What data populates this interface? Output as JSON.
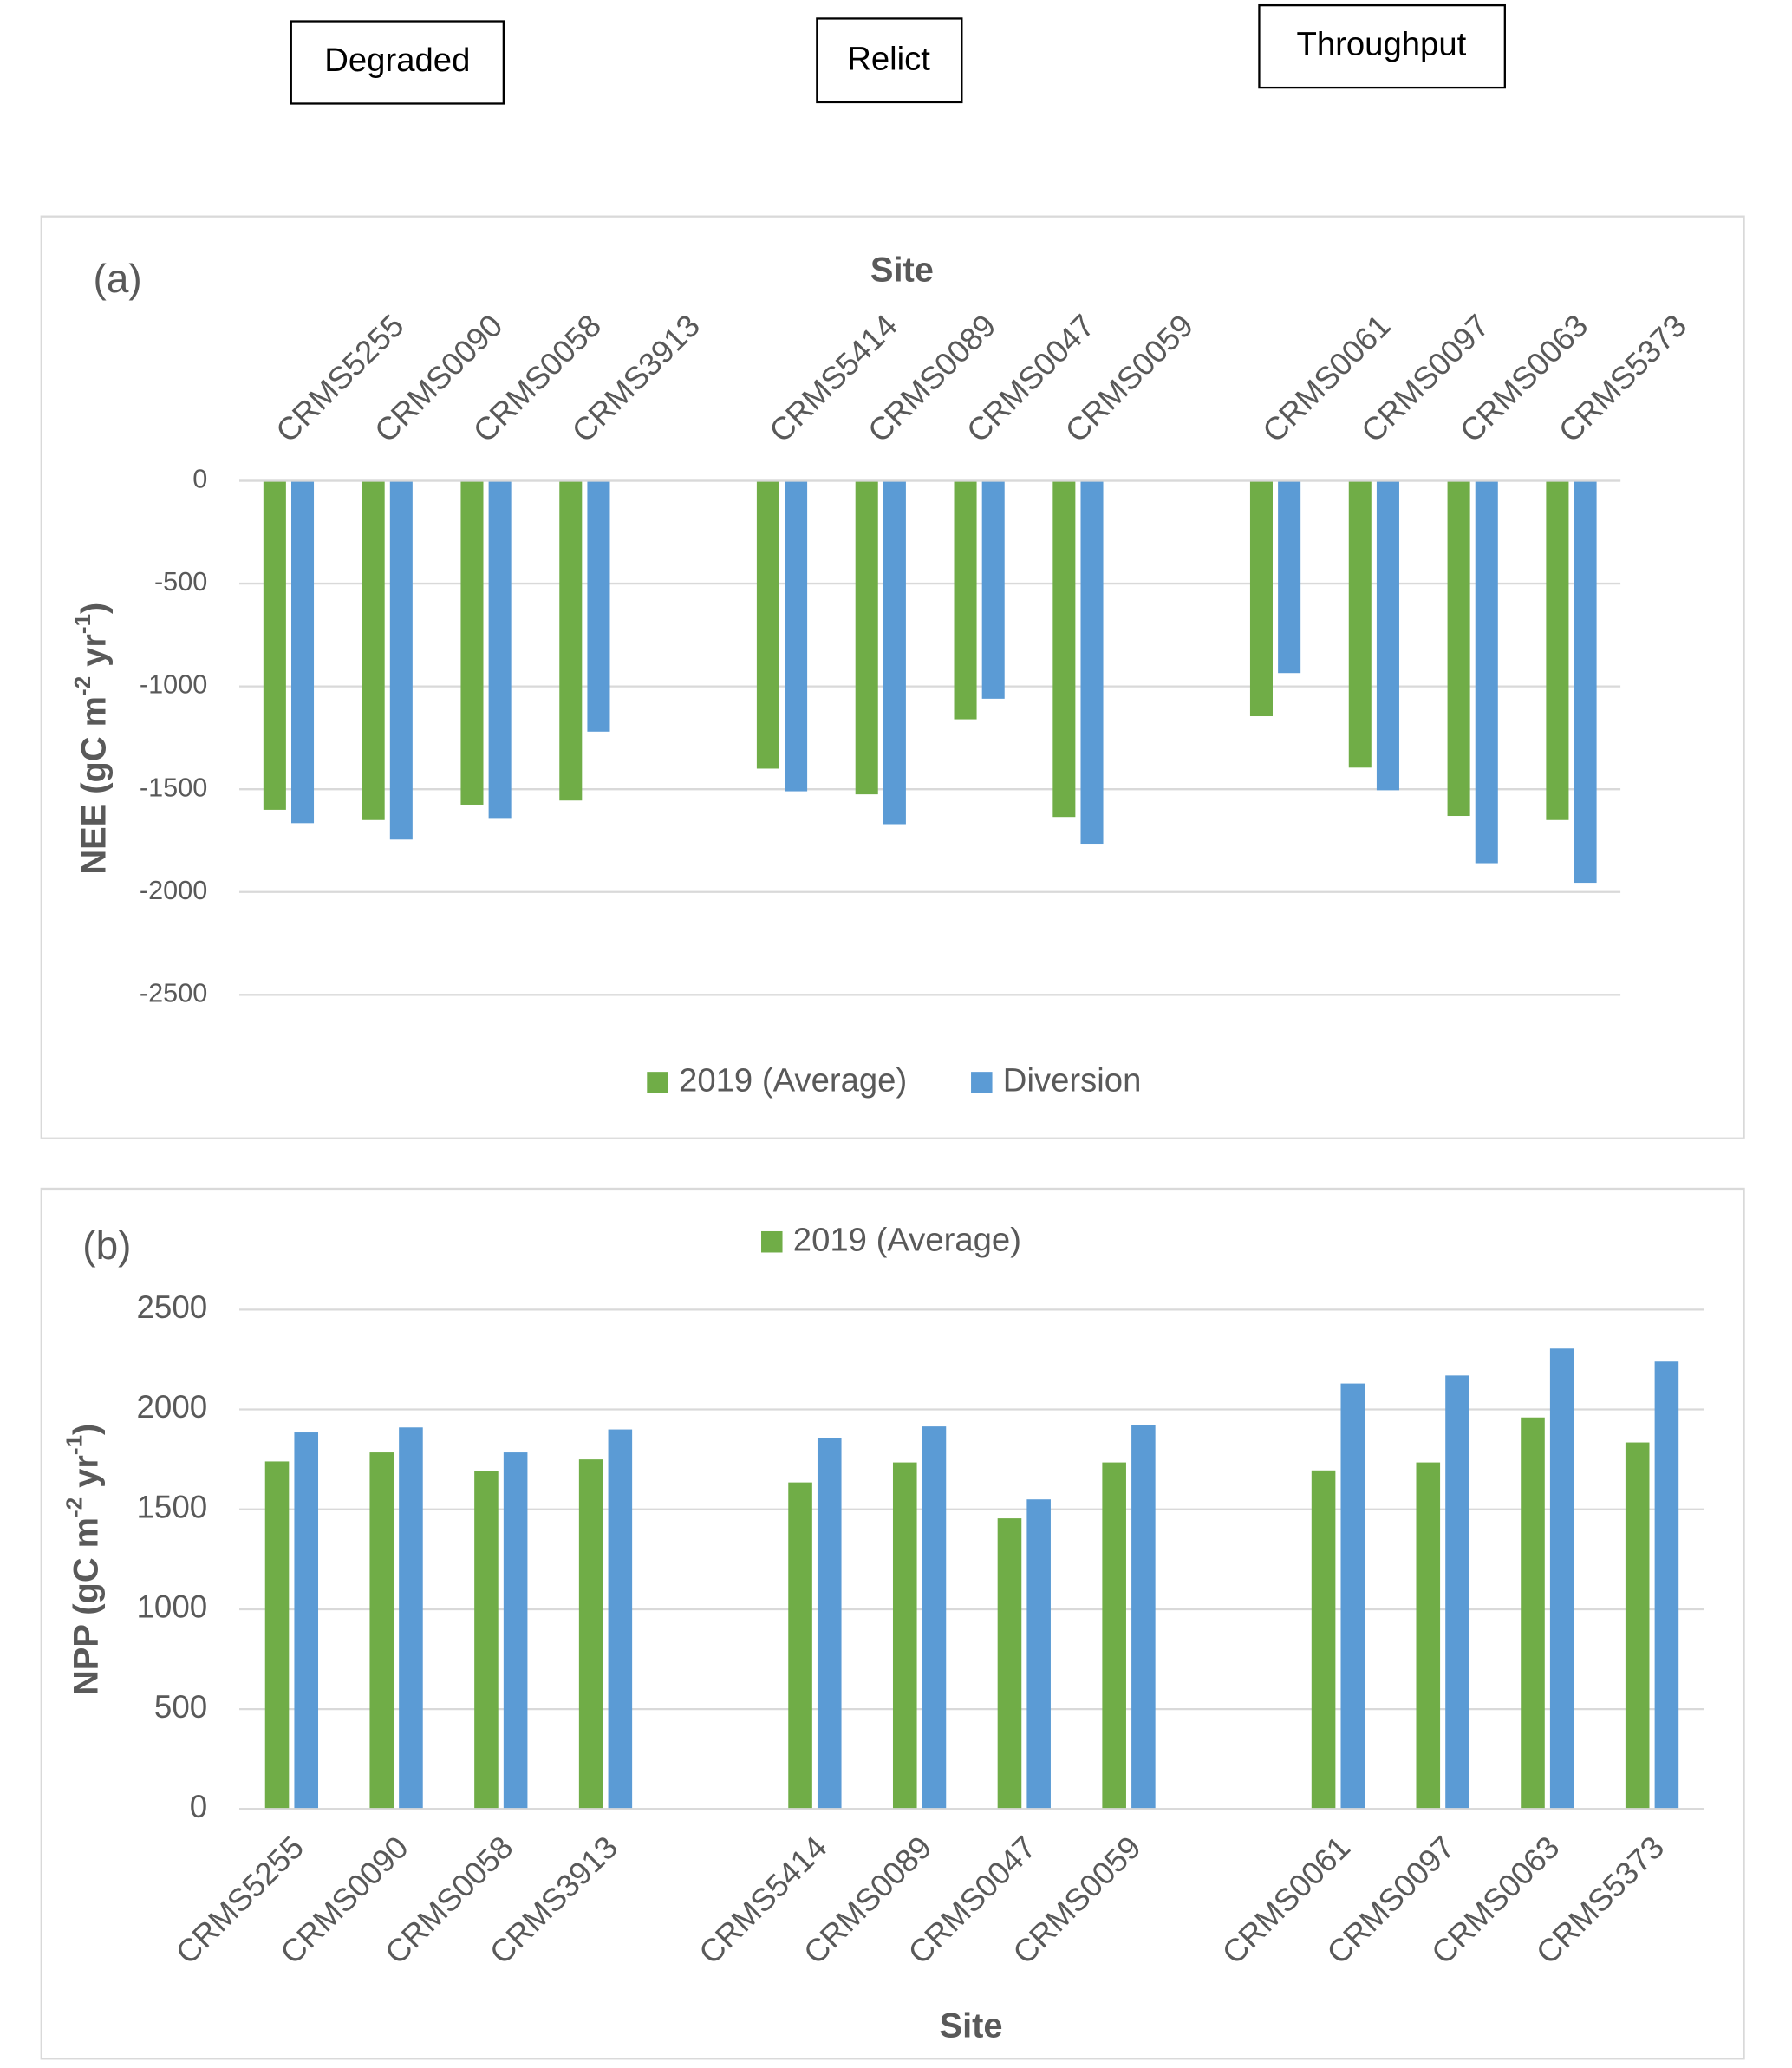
{
  "header": {
    "groups": [
      "Degraded",
      "Relict",
      "Throughput"
    ]
  },
  "chart_data": [
    {
      "type": "bar",
      "panel": "(a)",
      "x_label": "Site",
      "y_label": [
        "NEE (gC m",
        "-2",
        " yr",
        "-1",
        ")"
      ],
      "categories": [
        "CRMS5255",
        "CRMS0090",
        "CRMS0058",
        "CRMS3913",
        "CRMS5414",
        "CRMS0089",
        "CRMS0047",
        "CRMS0059",
        "CRMS0061",
        "CRMS0097",
        "CRMS0063",
        "CRMS5373"
      ],
      "series": [
        {
          "name": "2019 (Average)",
          "color": "#70ad47",
          "values": [
            -1600,
            -1650,
            -1575,
            -1555,
            -1400,
            -1525,
            -1160,
            -1635,
            -1145,
            -1395,
            -1630,
            -1650
          ]
        },
        {
          "name": "Diversion",
          "color": "#5b9bd5",
          "values": [
            -1665,
            -1745,
            -1640,
            -1220,
            -1510,
            -1670,
            -1060,
            -1765,
            -935,
            -1505,
            -1860,
            -1955
          ]
        }
      ],
      "ylim": [
        -2500,
        0
      ],
      "yticks": [
        0,
        -500,
        -1000,
        -1500,
        -2000,
        -2500
      ],
      "grid": true,
      "legend": "bottom"
    },
    {
      "type": "bar",
      "panel": "(b)",
      "x_label": "Site",
      "y_label": [
        "NPP (gC m",
        "-2",
        " yr",
        "-1",
        ")"
      ],
      "categories": [
        "CRMS5255",
        "CRMS0090",
        "CRMS0058",
        "CRMS3913",
        "CRMS5414",
        "CRMS0089",
        "CRMS0047",
        "CRMS0059",
        "CRMS0061",
        "CRMS0097",
        "CRMS0063",
        "CRMS5373"
      ],
      "series": [
        {
          "name": "2019 (Average)",
          "color": "#70ad47",
          "values": [
            1740,
            1785,
            1690,
            1750,
            1635,
            1735,
            1455,
            1735,
            1695,
            1735,
            1960,
            1835
          ]
        },
        {
          "color": "#5b9bd5",
          "values": [
            1885,
            1910,
            1785,
            1900,
            1855,
            1915,
            1550,
            1920,
            2130,
            2170,
            2305,
            2240
          ]
        }
      ],
      "ylim": [
        0,
        2500
      ],
      "yticks": [
        0,
        500,
        1000,
        1500,
        2000,
        2500
      ],
      "grid": true,
      "legend": "top"
    }
  ]
}
